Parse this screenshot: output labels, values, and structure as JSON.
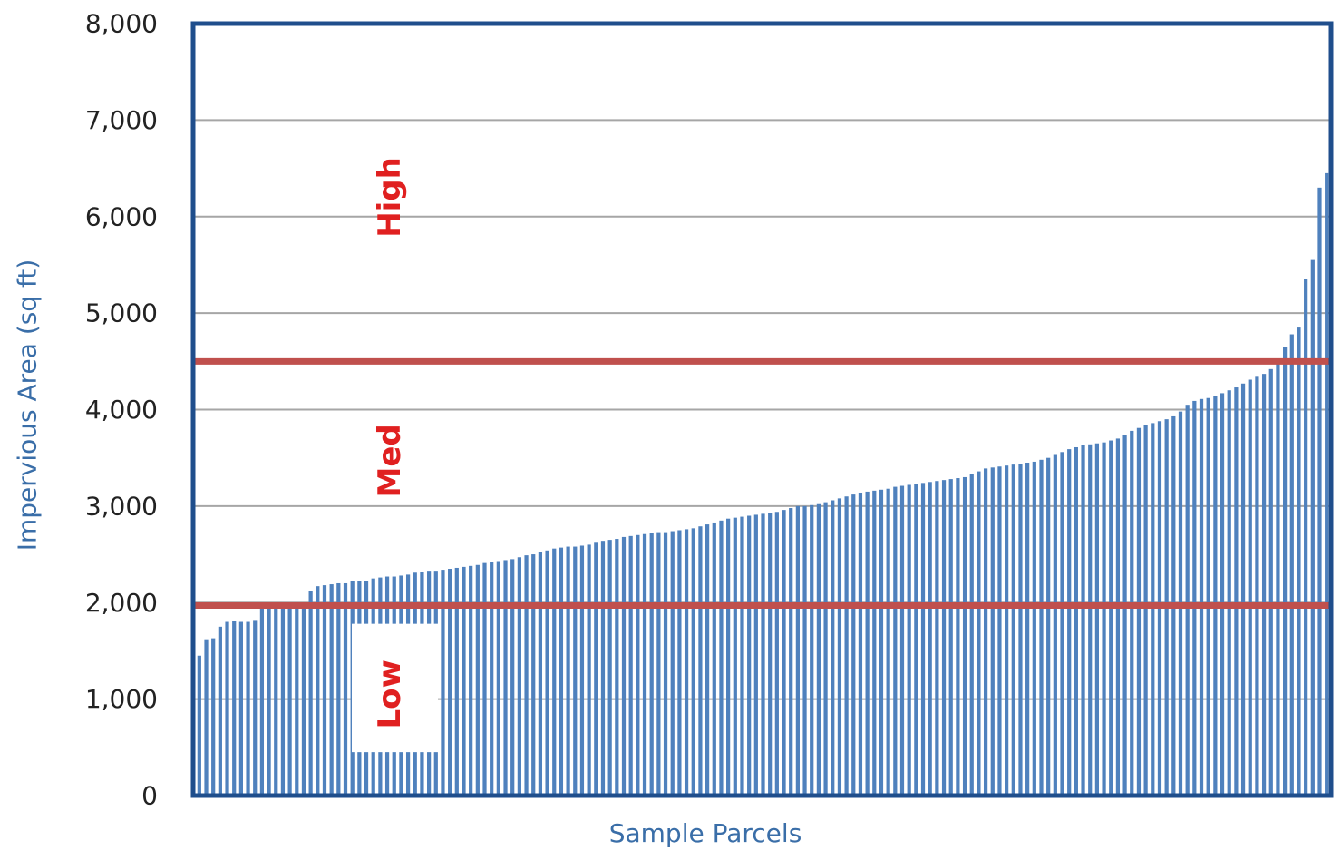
{
  "chart_data": {
    "type": "bar",
    "xlabel": "Sample Parcels",
    "ylabel": "Impervious Area (sq ft)",
    "ylim": [
      0,
      8000
    ],
    "yticks": [
      "0",
      "1,000",
      "2,000",
      "3,000",
      "4,000",
      "5,000",
      "6,000",
      "7,000",
      "8,000"
    ],
    "ytick_values": [
      0,
      1000,
      2000,
      3000,
      4000,
      5000,
      6000,
      7000,
      8000
    ],
    "grid": "horizontal",
    "values": [
      1450,
      1620,
      1630,
      1750,
      1800,
      1810,
      1800,
      1800,
      1820,
      1950,
      1950,
      1960,
      1960,
      1980,
      2000,
      2000,
      2120,
      2170,
      2180,
      2190,
      2200,
      2200,
      2220,
      2220,
      2220,
      2250,
      2260,
      2270,
      2270,
      2280,
      2290,
      2310,
      2320,
      2330,
      2330,
      2340,
      2350,
      2360,
      2370,
      2380,
      2390,
      2410,
      2420,
      2430,
      2440,
      2450,
      2470,
      2490,
      2500,
      2520,
      2540,
      2560,
      2570,
      2580,
      2580,
      2590,
      2600,
      2620,
      2640,
      2650,
      2660,
      2680,
      2690,
      2700,
      2710,
      2720,
      2730,
      2730,
      2740,
      2750,
      2760,
      2770,
      2790,
      2810,
      2830,
      2850,
      2870,
      2880,
      2890,
      2900,
      2910,
      2920,
      2930,
      2940,
      2960,
      2980,
      3000,
      3000,
      3010,
      3020,
      3040,
      3060,
      3080,
      3100,
      3120,
      3140,
      3150,
      3160,
      3170,
      3180,
      3200,
      3210,
      3220,
      3230,
      3240,
      3250,
      3260,
      3270,
      3280,
      3290,
      3300,
      3330,
      3360,
      3390,
      3400,
      3410,
      3420,
      3430,
      3440,
      3450,
      3460,
      3480,
      3500,
      3530,
      3560,
      3590,
      3610,
      3630,
      3640,
      3650,
      3660,
      3680,
      3700,
      3740,
      3780,
      3810,
      3840,
      3860,
      3880,
      3900,
      3930,
      3980,
      4050,
      4090,
      4110,
      4120,
      4140,
      4170,
      4200,
      4230,
      4270,
      4310,
      4340,
      4370,
      4420,
      4500,
      4650,
      4780,
      4850,
      5350,
      5550,
      6300,
      6450
    ],
    "thresholds": [
      {
        "name": "high-med-threshold",
        "value": 4500,
        "color": "#c0504d"
      },
      {
        "name": "med-low-threshold",
        "value": 1970,
        "color": "#c0504d"
      }
    ],
    "bands": [
      {
        "name": "band-label-high",
        "label": "High",
        "value": 6200
      },
      {
        "name": "band-label-med",
        "label": "Med",
        "value": 3470
      },
      {
        "name": "band-label-low",
        "label": "Low",
        "value": 1050
      }
    ],
    "colors": {
      "bar": "#4f81bd",
      "frame": "#1f4e8c",
      "grid": "#a6a6a6",
      "threshold": "#c0504d",
      "band_text": "#e02020"
    }
  }
}
